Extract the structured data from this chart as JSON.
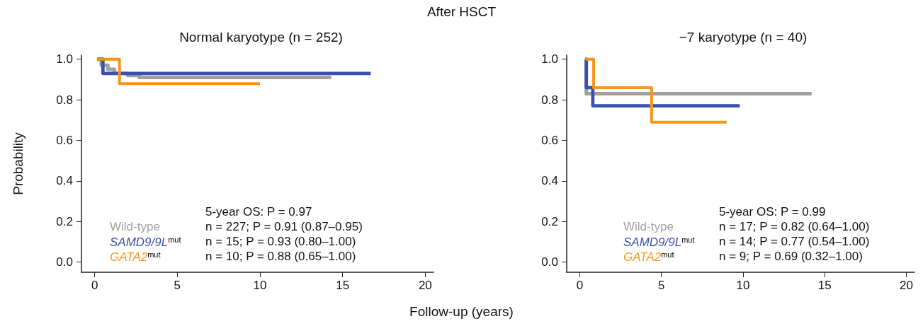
{
  "chart_data": [
    {
      "type": "step",
      "title": "Normal karyotype (n = 252)",
      "xlabel": "Follow-up (years)",
      "ylabel": "Probability",
      "annotations": [
        "After HSCT",
        "5-year OS: P = 0.97",
        "n = 227; P = 0.91 (0.87–0.95)",
        "n = 15; P = 0.93 (0.80–1.00)",
        "n = 10; P = 0.88 (0.65–1.00)"
      ],
      "xlim": [
        -0.8,
        20.5
      ],
      "xticks": [
        0,
        5,
        10,
        15,
        20
      ],
      "ylim": [
        -0.05,
        1.02
      ],
      "yticks": [
        {
          "value": 0,
          "label": "0.0"
        },
        {
          "value": 0.2,
          "label": "0.2"
        },
        {
          "value": 0.4,
          "label": "0.4"
        },
        {
          "value": 0.6,
          "label": "0.6"
        },
        {
          "value": 0.8,
          "label": "0.8"
        },
        {
          "value": 1,
          "label": "1.0"
        }
      ],
      "grid": false,
      "legend": "bottom",
      "series": [
        {
          "name": "Wild-type",
          "color": "#a0a0a0",
          "x": [
            0.15,
            0.4,
            0.8,
            1.2,
            2.0,
            2.7,
            14.3
          ],
          "values": [
            1.0,
            0.97,
            0.95,
            0.93,
            0.92,
            0.91,
            0.91
          ]
        },
        {
          "name": "SAMD9/9L$^{mut}$",
          "color": "#3a4fb0",
          "x": [
            0.15,
            0.5,
            16.7
          ],
          "values": [
            1.0,
            0.93,
            0.93
          ]
        },
        {
          "name": "GATA2$^{mut}$",
          "color": "#f7941d",
          "x": [
            0.15,
            1.5,
            10.0
          ],
          "values": [
            1.0,
            0.88,
            0.88
          ]
        }
      ]
    },
    {
      "type": "step",
      "title": "−7 karyotype (n = 40)",
      "annotations": [
        "5-year OS: P = 0.99",
        "n = 17; P = 0.82 (0.64–1.00)",
        "n = 14; P = 0.77 (0.54–1.00)",
        "n = 9; P = 0.69 (0.32–1.00)"
      ],
      "xlim": [
        -0.8,
        20.5
      ],
      "xticks": [
        0,
        5,
        10,
        15,
        20
      ],
      "ylim": [
        -0.05,
        1.02
      ],
      "yticks": [
        {
          "value": 0,
          "label": "0.0"
        },
        {
          "value": 0.2,
          "label": "0.2"
        },
        {
          "value": 0.4,
          "label": "0.4"
        },
        {
          "value": 0.6,
          "label": "0.6"
        },
        {
          "value": 0.8,
          "label": "0.8"
        },
        {
          "value": 1,
          "label": "1.0"
        }
      ],
      "grid": false,
      "legend": "bottom",
      "series": [
        {
          "name": "Wild-type",
          "color": "#a0a0a0",
          "x": [
            0.35,
            0.4,
            14.2
          ],
          "values": [
            1.0,
            0.83,
            0.83
          ]
        },
        {
          "name": "SAMD9/9L$^{mut}$",
          "color": "#3a4fb0",
          "x": [
            0.35,
            0.4,
            0.8,
            9.8
          ],
          "values": [
            1.0,
            0.86,
            0.77,
            0.77
          ]
        },
        {
          "name": "GATA2$^{mut}$",
          "color": "#f7941d",
          "x": [
            0.35,
            0.85,
            4.4,
            9.0
          ],
          "values": [
            1.0,
            0.86,
            0.69,
            0.69
          ]
        }
      ]
    }
  ]
}
